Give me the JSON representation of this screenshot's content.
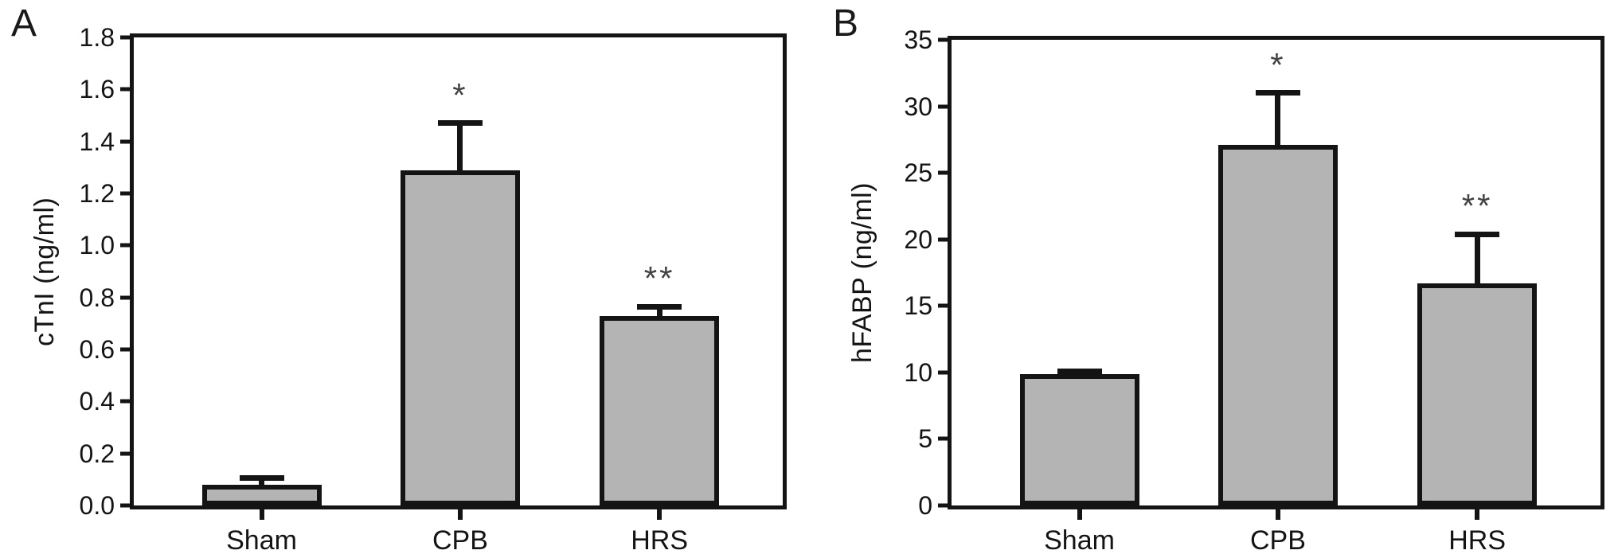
{
  "figure": {
    "background": "#ffffff",
    "panel_letters": [
      "A",
      "B"
    ]
  },
  "colors": {
    "bar_fill": "#b4b4b4",
    "stroke": "#141414",
    "significance": "#434343",
    "background": "#ffffff"
  },
  "chart_data": [
    {
      "type": "bar",
      "panel_label": "A",
      "ylabel": "cTnI (ng/ml)",
      "xlabel": "",
      "categories": [
        "Sham",
        "CPB",
        "HRS"
      ],
      "values": [
        0.08,
        1.29,
        0.73
      ],
      "error_top": [
        0.105,
        1.47,
        0.765
      ],
      "significance": [
        "",
        "*",
        "**"
      ],
      "ylim": [
        0,
        1.8
      ],
      "ytick_step": 0.2,
      "ytick_decimals": 1,
      "grid": false,
      "legend": false
    },
    {
      "type": "bar",
      "panel_label": "B",
      "ylabel": "hFABP (ng/ml)",
      "xlabel": "",
      "categories": [
        "Sham",
        "CPB",
        "HRS"
      ],
      "values": [
        9.9,
        27.1,
        16.7
      ],
      "error_top": [
        10.1,
        31.0,
        20.4
      ],
      "significance": [
        "",
        "*",
        "**"
      ],
      "ylim": [
        0,
        35
      ],
      "ytick_step": 5,
      "ytick_decimals": 0,
      "grid": false,
      "legend": false
    }
  ]
}
